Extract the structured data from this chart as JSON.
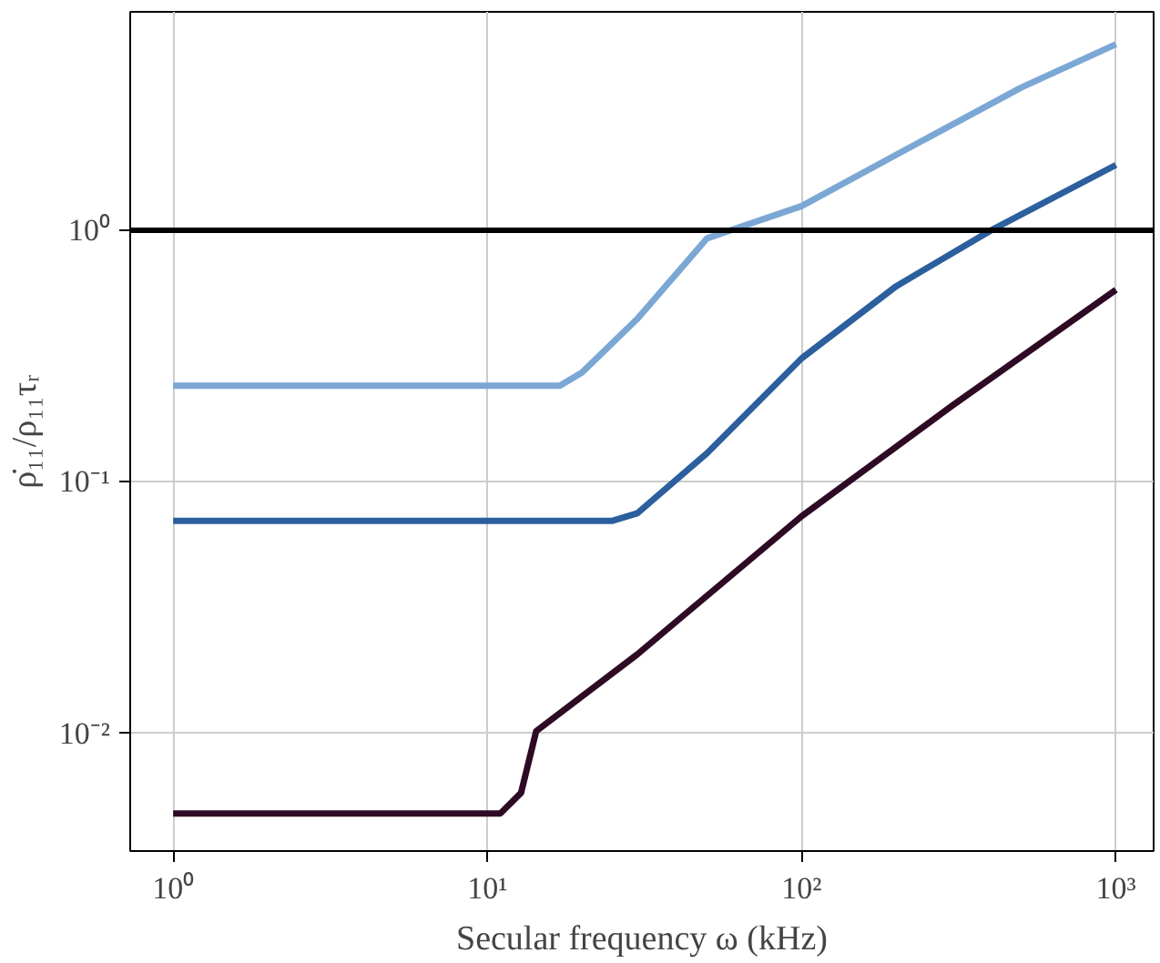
{
  "chart_data": {
    "type": "line",
    "xlabel": "Secular frequency ω (kHz)",
    "ylabel": "ρ̇₁₁/ρ₁₁τᵣ",
    "log": "xy",
    "grid": true,
    "line_style": "solid",
    "marker": "none",
    "xlim": [
      0.73,
      1318
    ],
    "ylim": [
      0.0034,
      7.4
    ],
    "xticks": [
      {
        "value": 1,
        "label": "10⁰"
      },
      {
        "value": 10,
        "label": "10¹"
      },
      {
        "value": 100,
        "label": "10²"
      },
      {
        "value": 1000,
        "label": "10³"
      }
    ],
    "yticks": [
      {
        "value": 0.01,
        "label": "10⁻²"
      },
      {
        "value": 0.1,
        "label": "10⁻¹"
      },
      {
        "value": 1,
        "label": "10⁰"
      }
    ],
    "ref_lines": [
      {
        "axis": "y",
        "value": 1,
        "color": "#000000",
        "line_style": "solid"
      }
    ],
    "series": [
      {
        "color": "#7ba7d4",
        "x": [
          1,
          17,
          20,
          30,
          50,
          100,
          200,
          500,
          1000
        ],
        "values": [
          0.241,
          0.241,
          0.272,
          0.445,
          0.93,
          1.25,
          2.0,
          3.7,
          5.5
        ]
      },
      {
        "color": "#2b5f9e",
        "x": [
          1,
          25,
          30,
          50,
          100,
          200,
          400,
          1000
        ],
        "values": [
          0.07,
          0.07,
          0.075,
          0.13,
          0.31,
          0.6,
          1.0,
          1.82
        ]
      },
      {
        "color": "#2e0a24",
        "x": [
          1,
          11,
          12.8,
          14.3,
          30,
          100,
          300,
          1000
        ],
        "values": [
          0.0048,
          0.0048,
          0.0058,
          0.0102,
          0.0206,
          0.073,
          0.2,
          0.58
        ]
      }
    ]
  }
}
